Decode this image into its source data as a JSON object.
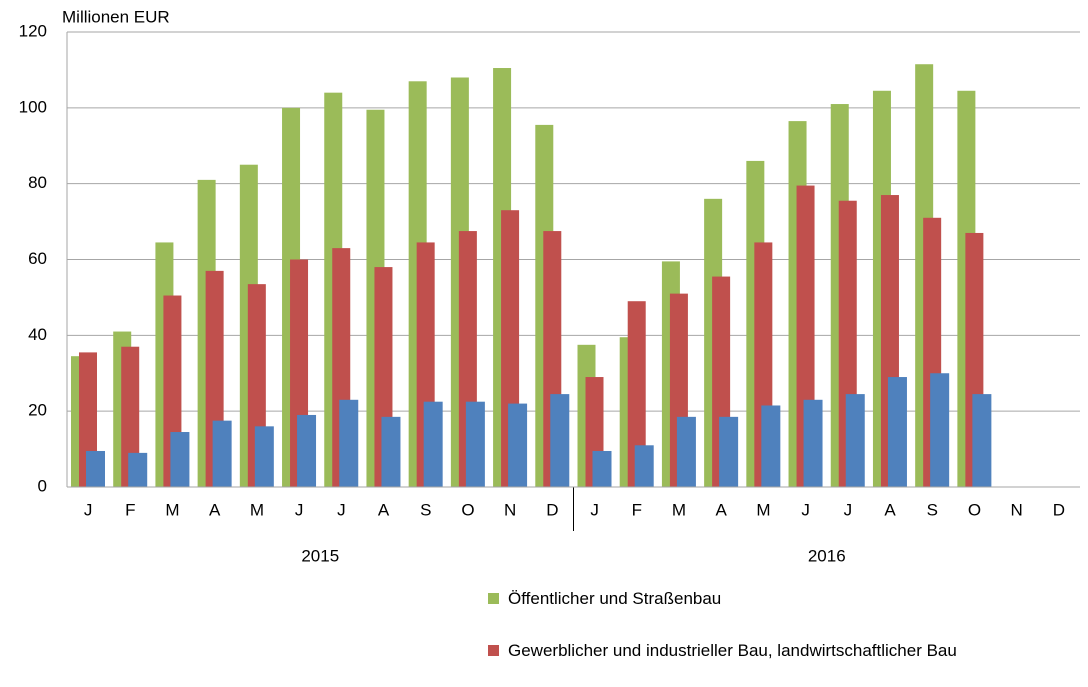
{
  "chart_data": {
    "type": "bar",
    "y_label": "Millionen EUR",
    "categories": [
      "J",
      "F",
      "M",
      "A",
      "M",
      "J",
      "J",
      "A",
      "S",
      "O",
      "N",
      "D",
      "J",
      "F",
      "M",
      "A",
      "M",
      "J",
      "J",
      "A",
      "S",
      "O",
      "N",
      "D"
    ],
    "groups": [
      "2015",
      "2016"
    ],
    "series": [
      {
        "name": "Öffentlicher und Straßenbau",
        "color": "#9bbb59",
        "values": [
          34.5,
          41,
          64.5,
          81,
          85,
          100,
          104,
          99.5,
          107,
          108,
          110.5,
          95.5,
          37.5,
          39.5,
          59.5,
          76,
          86,
          96.5,
          101,
          104.5,
          111.5,
          104.5,
          null,
          null
        ]
      },
      {
        "name": "Gewerblicher und industrieller Bau, landwirtschaftlicher Bau",
        "color": "#c0504d",
        "values": [
          35.5,
          37,
          50.5,
          57,
          53.5,
          60,
          63,
          58,
          64.5,
          67.5,
          73,
          67.5,
          29,
          49,
          51,
          55.5,
          64.5,
          79.5,
          75.5,
          77,
          71,
          67,
          null,
          null
        ]
      },
      {
        "color": "#4f81bd",
        "values": [
          9.5,
          9,
          14.5,
          17.5,
          16,
          19,
          23,
          18.5,
          22.5,
          22.5,
          22,
          24.5,
          9.5,
          11,
          18.5,
          18.5,
          21.5,
          23,
          24.5,
          29,
          30,
          24.5,
          null,
          null
        ]
      }
    ],
    "ylim": [
      0,
      120
    ],
    "yticks": [
      0,
      20,
      40,
      60,
      80,
      100,
      120
    ],
    "grid": true
  }
}
